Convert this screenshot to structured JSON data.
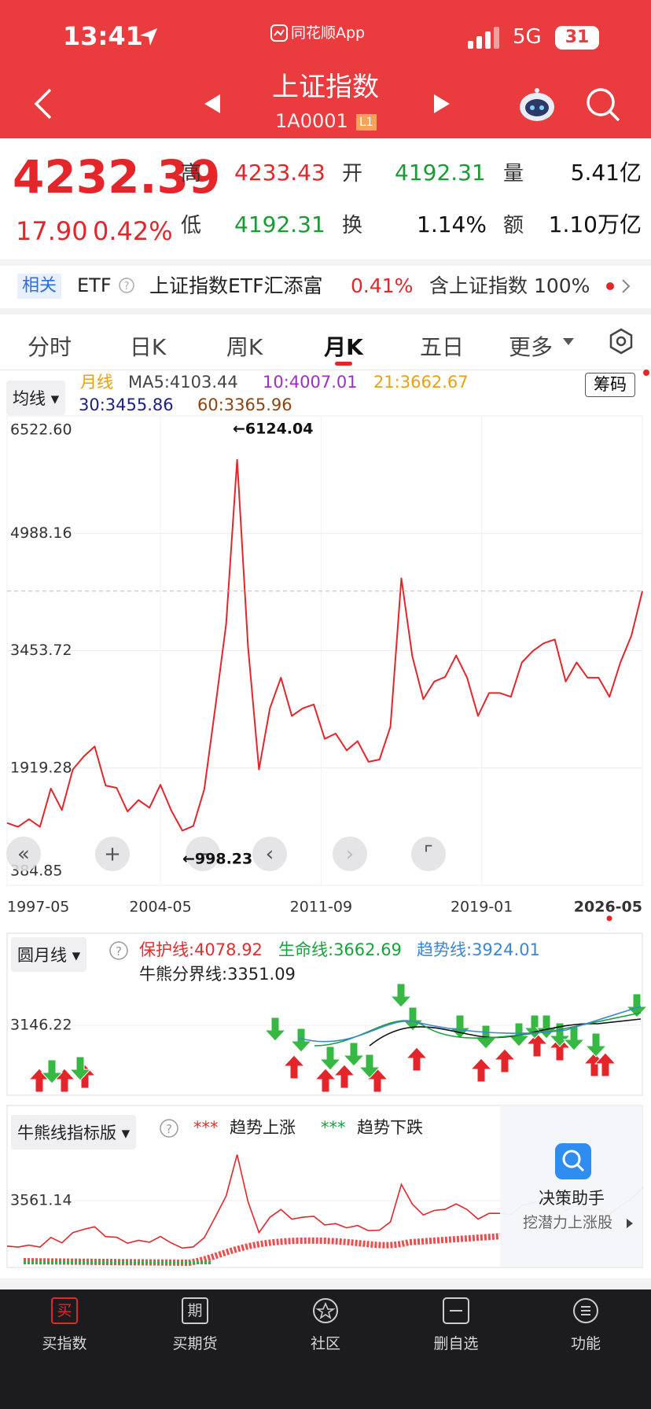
{
  "status_bar": {
    "time": "13:41",
    "app": "同花顺App",
    "network": "5G",
    "battery": "31"
  },
  "header": {
    "title": "上证指数",
    "code": "1A0001",
    "level": "L1"
  },
  "quote": {
    "price": 4232.39,
    "change": "17.90",
    "change_pct": "0.42%",
    "stats": [
      {
        "label": "高",
        "value": "4233.43"
      },
      {
        "label": "开",
        "value": "4192.31"
      },
      {
        "label": "量",
        "value": "5.41亿"
      },
      {
        "label": "低",
        "value": "4192.31"
      },
      {
        "label": "换",
        "value": "1.14%"
      },
      {
        "label": "额",
        "value": "1.10万亿"
      }
    ]
  },
  "etf_bar": {
    "tag": "相关",
    "type": "ETF",
    "name": "上证指数ETF汇添富",
    "change_pct": "0.41%",
    "holding": "含上证指数 100%"
  },
  "tabs": [
    "分时",
    "日K",
    "周K",
    "月K",
    "五日",
    "更多"
  ],
  "main_chart": {
    "type": "line",
    "indicator": "均线",
    "period": "月线",
    "ma_legend": [
      {
        "text": "MA5:4103.44",
        "color": "#444444"
      },
      {
        "text": "10:4007.01",
        "color": "#9b2fc7"
      },
      {
        "text": "21:3662.67",
        "color": "#e8a10f"
      },
      {
        "text": "30:3455.86",
        "color": "#1d1c8c"
      },
      {
        "text": "60:3365.96",
        "color": "#8b4513"
      }
    ],
    "chip_button": "筹码",
    "ylim": [
      384.85,
      6522.6
    ],
    "yticks": [
      {
        "value": 6522.6,
        "label": "6522.60"
      },
      4988.16,
      3453.72,
      1919.28,
      384.85
    ],
    "xticks": [
      "1997-05",
      "2004-05",
      "2011-09",
      "2019-01",
      "2026-05"
    ],
    "max_label": "←6124.04",
    "min_label": "←998.23",
    "color": "#e4262b",
    "closes": [
      1200,
      1150,
      1250,
      1150,
      1650,
      1370,
      1900,
      2070,
      2200,
      1690,
      1660,
      1350,
      1500,
      1400,
      1700,
      1360,
      1100,
      1160,
      1640,
      2700,
      3800,
      5950,
      3500,
      1900,
      2700,
      3100,
      2600,
      2700,
      2750,
      2300,
      2370,
      2150,
      2270,
      2000,
      2030,
      2460,
      4400,
      3380,
      2820,
      3050,
      3110,
      3390,
      3100,
      2600,
      2900,
      2900,
      2850,
      3300,
      3450,
      3550,
      3600,
      3050,
      3300,
      3100,
      3100,
      2850,
      3300,
      3650,
      4232.39
    ]
  },
  "sub_chart_1": {
    "indicator": "圆月线",
    "legend": [
      {
        "text": "保护线:4078.92",
        "color": "#e02f2f"
      },
      {
        "text": "生命线:3662.69",
        "color": "#18a33a"
      },
      {
        "text": "趋势线:3924.01",
        "color": "#3a86d6"
      },
      {
        "text": "牛熊分界线:3351.09",
        "color": "#222222"
      }
    ],
    "yticks": [
      3146.22
    ]
  },
  "sub_chart_2": {
    "indicator": "牛熊线指标版",
    "legend": [
      {
        "marker": "***",
        "text": "趋势上涨",
        "color": "#e02f2f"
      },
      {
        "marker": "***",
        "text": "趋势下跌",
        "color": "#18a33a"
      }
    ],
    "yticks": [
      3561.14
    ]
  },
  "promo": {
    "title": "决策助手",
    "subtitle": "挖潜力上涨股"
  },
  "bottom_nav": [
    {
      "icon": "买",
      "label": "买指数"
    },
    {
      "icon": "期",
      "label": "买期货"
    },
    {
      "label": "社区"
    },
    {
      "label": "删自选"
    },
    {
      "label": "功能"
    }
  ]
}
